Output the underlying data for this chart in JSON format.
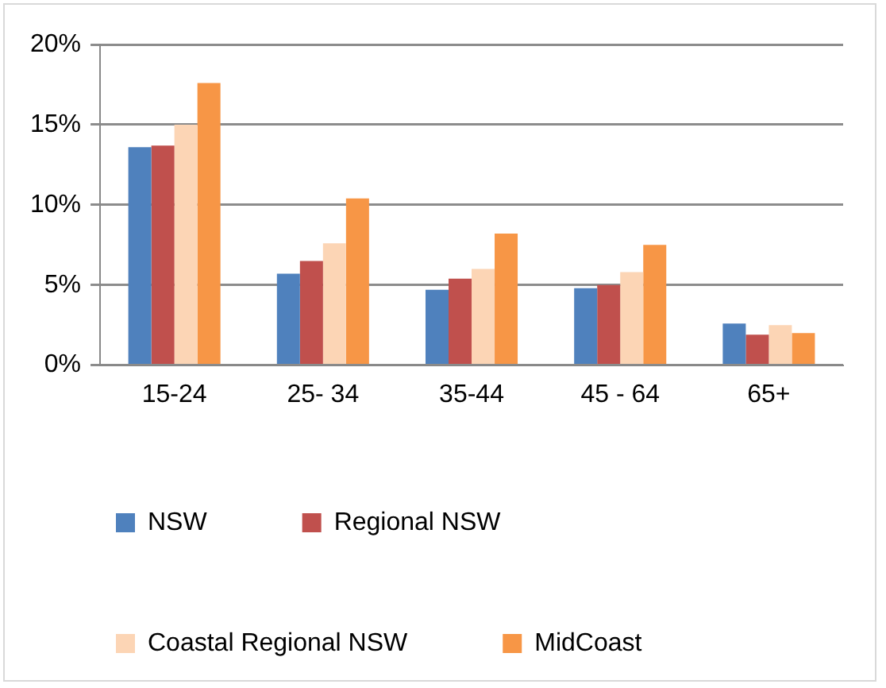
{
  "chart_data": {
    "type": "bar",
    "categories": [
      "15-24",
      "25- 34",
      "35-44",
      "45 - 64",
      "65+"
    ],
    "series": [
      {
        "name": "NSW",
        "color": "#4f81bd",
        "values": [
          13.6,
          5.7,
          4.7,
          4.8,
          2.6
        ]
      },
      {
        "name": "Regional NSW",
        "color": "#c0504d",
        "values": [
          13.7,
          6.5,
          5.4,
          5.0,
          1.9
        ]
      },
      {
        "name": "Coastal Regional NSW",
        "color": "#fcd5b5",
        "values": [
          15.0,
          7.6,
          6.0,
          5.8,
          2.5
        ]
      },
      {
        "name": "MidCoast",
        "color": "#f79646",
        "values": [
          17.6,
          10.4,
          8.2,
          7.5,
          2.0
        ]
      }
    ],
    "ylim": [
      0,
      20
    ],
    "yticks": [
      {
        "value": 0,
        "label": "0%"
      },
      {
        "value": 5,
        "label": "5%"
      },
      {
        "value": 10,
        "label": "10%"
      },
      {
        "value": 15,
        "label": "15%"
      },
      {
        "value": 20,
        "label": "20%"
      }
    ],
    "grid": "y",
    "legend": "bottom"
  }
}
